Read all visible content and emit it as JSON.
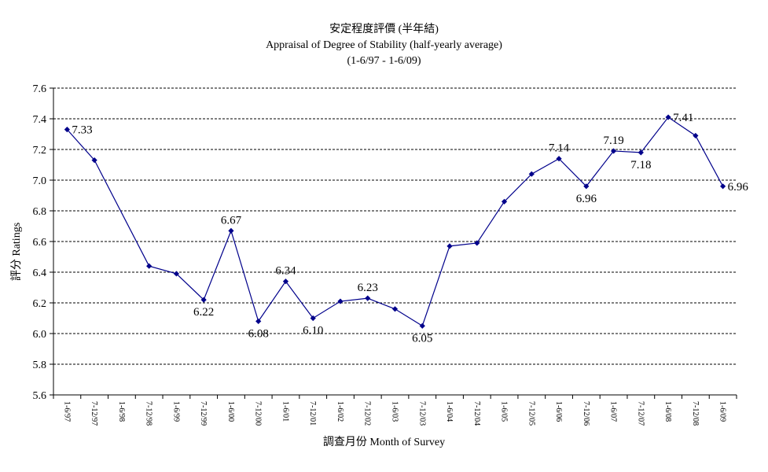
{
  "chart_data": {
    "type": "line",
    "title": "安定程度評價 (半年結)",
    "subtitle": "Appraisal of Degree of Stability (half-yearly average)",
    "period": "(1-6/97 - 1-6/09)",
    "xlabel": "調查月份 Month of Survey",
    "ylabel": "評分 Ratings",
    "ylim": [
      5.6,
      7.6
    ],
    "yticks": [
      "5.6",
      "5.8",
      "6.0",
      "6.2",
      "6.4",
      "6.6",
      "6.8",
      "7.0",
      "7.2",
      "7.4",
      "7.6"
    ],
    "grid": true,
    "categories": [
      "1-6/97",
      "7-12/97",
      "1-6/98",
      "7-12/98",
      "1-6/99",
      "7-12/99",
      "1-6/00",
      "7-12/00",
      "1-6/01",
      "7-12/01",
      "1-6/02",
      "7-12/02",
      "1-6/03",
      "7-12/03",
      "1-6/04",
      "7-12/04",
      "1-6/05",
      "7-12/05",
      "1-6/06",
      "7-12/06",
      "1-6/07",
      "7-12/07",
      "1-6/08",
      "7-12/08",
      "1-6/09"
    ],
    "series": [
      {
        "color": "#00008B",
        "values": [
          7.33,
          7.13,
          null,
          6.44,
          6.39,
          6.22,
          6.67,
          6.08,
          6.34,
          6.1,
          6.21,
          6.23,
          6.16,
          6.05,
          6.57,
          6.59,
          6.86,
          7.04,
          7.14,
          6.96,
          7.19,
          7.18,
          7.41,
          7.29,
          6.96
        ]
      }
    ],
    "data_labels": [
      {
        "index": 0,
        "text": "7.33",
        "pos": "right"
      },
      {
        "index": 5,
        "text": "6.22",
        "pos": "below"
      },
      {
        "index": 6,
        "text": "6.67",
        "pos": "above"
      },
      {
        "index": 7,
        "text": "6.08",
        "pos": "below"
      },
      {
        "index": 8,
        "text": "6.34",
        "pos": "above"
      },
      {
        "index": 9,
        "text": "6.10",
        "pos": "below"
      },
      {
        "index": 11,
        "text": "6.23",
        "pos": "above"
      },
      {
        "index": 13,
        "text": "6.05",
        "pos": "below"
      },
      {
        "index": 18,
        "text": "7.14",
        "pos": "above"
      },
      {
        "index": 19,
        "text": "6.96",
        "pos": "below"
      },
      {
        "index": 20,
        "text": "7.19",
        "pos": "above"
      },
      {
        "index": 21,
        "text": "7.18",
        "pos": "below"
      },
      {
        "index": 22,
        "text": "7.41",
        "pos": "right"
      },
      {
        "index": 24,
        "text": "6.96",
        "pos": "right"
      }
    ]
  }
}
